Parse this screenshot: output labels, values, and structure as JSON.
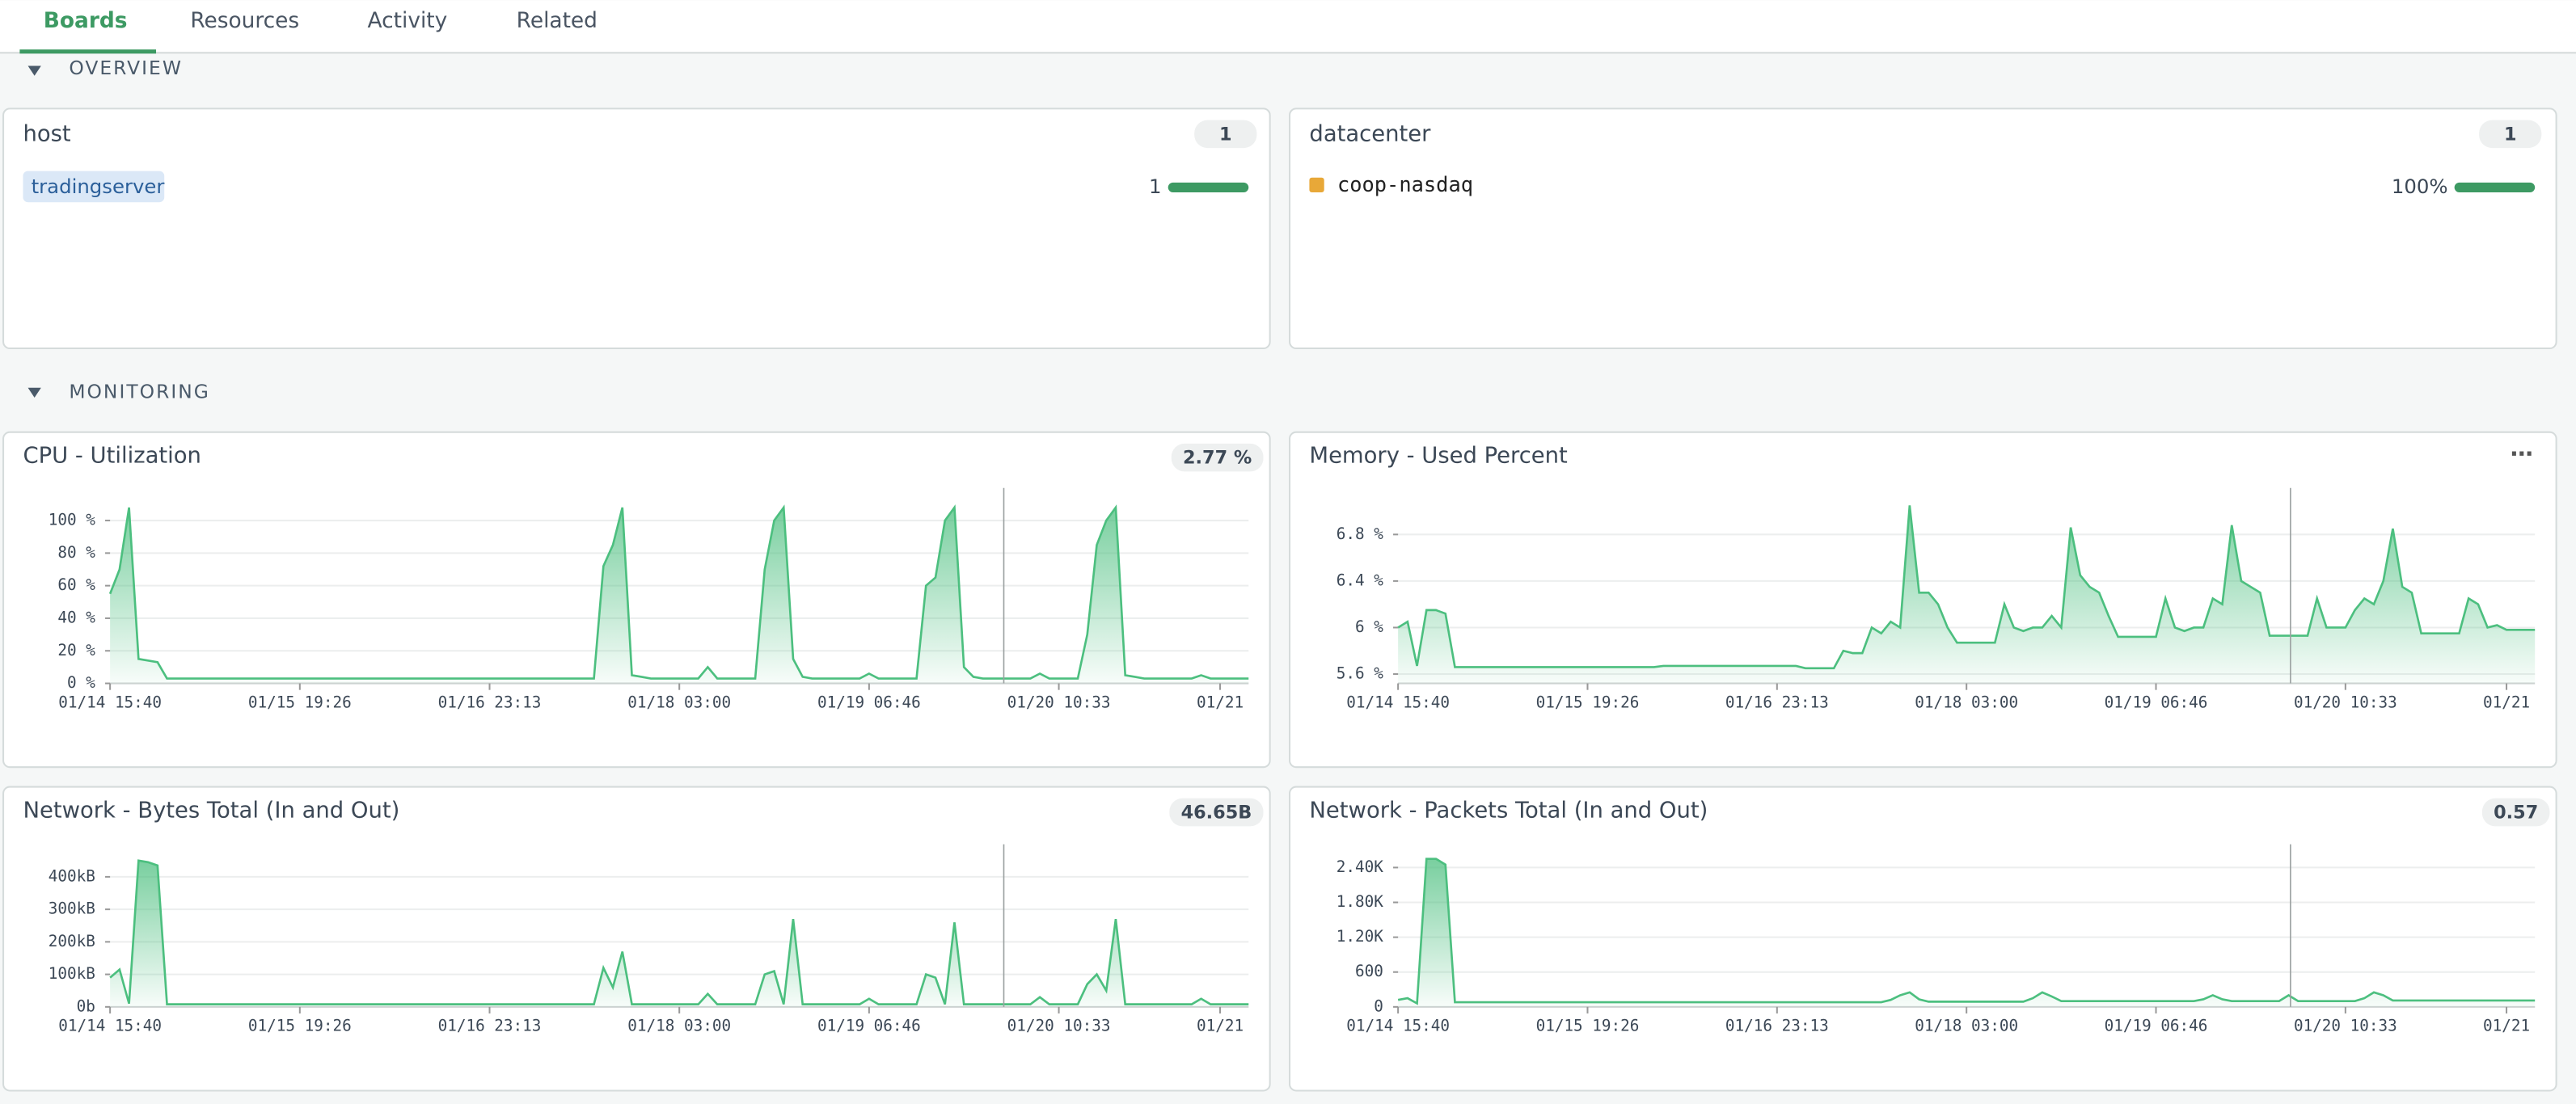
{
  "tabs": [
    "Boards",
    "Resources",
    "Activity",
    "Related"
  ],
  "sections": {
    "overview": "OVERVIEW",
    "monitoring": "MONITORING"
  },
  "host": {
    "title": "host",
    "count": 1,
    "tag": "tradingserver",
    "share": 1
  },
  "datacenter": {
    "title": "datacenter",
    "count": 1,
    "item": "coop-nasdaq",
    "item_color": "#e8a838",
    "share": "100%"
  },
  "chart_data": [
    {
      "type": "area",
      "title": "CPU - Utilization",
      "badge": "2.77 %",
      "color": "#4cbf7f",
      "values": [
        55,
        70,
        108,
        15,
        14,
        13,
        3,
        3,
        3,
        3,
        3,
        3,
        3,
        3,
        3,
        3,
        3,
        3,
        3,
        3,
        3,
        3,
        3,
        3,
        3,
        3,
        3,
        3,
        3,
        3,
        3,
        3,
        3,
        3,
        3,
        3,
        3,
        3,
        3,
        3,
        3,
        3,
        3,
        3,
        3,
        3,
        3,
        3,
        3,
        3,
        3,
        3,
        72,
        85,
        108,
        5,
        4,
        3,
        3,
        3,
        3,
        3,
        3,
        10,
        3,
        3,
        3,
        3,
        3,
        70,
        100,
        108,
        15,
        4,
        3,
        3,
        3,
        3,
        3,
        3,
        6,
        3,
        3,
        3,
        3,
        3,
        60,
        65,
        100,
        108,
        10,
        4,
        3,
        3,
        3,
        3,
        3,
        3,
        6,
        3,
        3,
        3,
        3,
        30,
        85,
        100,
        108,
        5,
        4,
        3,
        3,
        3,
        3,
        3,
        3,
        5,
        3,
        3,
        3,
        3,
        3
      ],
      "xlim": [
        0,
        120
      ],
      "xticks": [
        {
          "value": 0,
          "label": "01/14 15:40"
        },
        {
          "value": 20,
          "label": "01/15 19:26"
        },
        {
          "value": 40,
          "label": "01/16 23:13"
        },
        {
          "value": 60,
          "label": "01/18 03:00"
        },
        {
          "value": 80,
          "label": "01/19 06:46"
        },
        {
          "value": 100,
          "label": "01/20 10:33"
        },
        {
          "value": 117,
          "label": "01/21"
        }
      ],
      "ylim": [
        0,
        120
      ],
      "yticks": [
        {
          "value": 0,
          "label": "0 %"
        },
        {
          "value": 20,
          "label": "20 %"
        },
        {
          "value": 40,
          "label": "40 %"
        },
        {
          "value": 60,
          "label": "60 %"
        },
        {
          "value": 80,
          "label": "80 %"
        },
        {
          "value": 100,
          "label": "100 %"
        }
      ],
      "grid": true
    },
    {
      "type": "area",
      "title": "Memory - Used Percent",
      "color": "#4cbf7f",
      "values": [
        6.0,
        6.05,
        5.67,
        6.15,
        6.15,
        6.12,
        5.66,
        5.66,
        5.66,
        5.66,
        5.66,
        5.66,
        5.66,
        5.66,
        5.66,
        5.66,
        5.66,
        5.66,
        5.66,
        5.66,
        5.66,
        5.66,
        5.66,
        5.66,
        5.66,
        5.66,
        5.66,
        5.66,
        5.67,
        5.67,
        5.67,
        5.67,
        5.67,
        5.67,
        5.67,
        5.67,
        5.67,
        5.67,
        5.67,
        5.67,
        5.67,
        5.67,
        5.67,
        5.65,
        5.65,
        5.65,
        5.65,
        5.8,
        5.78,
        5.78,
        6.0,
        5.95,
        6.05,
        6.0,
        7.05,
        6.3,
        6.3,
        6.2,
        6.0,
        5.87,
        5.87,
        5.87,
        5.87,
        5.87,
        6.2,
        6.0,
        5.97,
        6.0,
        6.0,
        6.1,
        6.0,
        6.86,
        6.45,
        6.35,
        6.3,
        6.1,
        5.92,
        5.92,
        5.92,
        5.92,
        5.92,
        6.25,
        6.0,
        5.97,
        6.0,
        6.0,
        6.25,
        6.2,
        6.88,
        6.4,
        6.35,
        6.3,
        5.93,
        5.93,
        5.93,
        5.93,
        5.93,
        6.25,
        6.0,
        6.0,
        6.0,
        6.15,
        6.25,
        6.2,
        6.4,
        6.85,
        6.35,
        6.3,
        5.95,
        5.95,
        5.95,
        5.95,
        5.95,
        6.25,
        6.2,
        6.0,
        6.02,
        5.98,
        5.98,
        5.98,
        5.98
      ],
      "xlim": [
        0,
        120
      ],
      "xticks": [
        {
          "value": 0,
          "label": "01/14 15:40"
        },
        {
          "value": 20,
          "label": "01/15 19:26"
        },
        {
          "value": 40,
          "label": "01/16 23:13"
        },
        {
          "value": 60,
          "label": "01/18 03:00"
        },
        {
          "value": 80,
          "label": "01/19 06:46"
        },
        {
          "value": 100,
          "label": "01/20 10:33"
        },
        {
          "value": 117,
          "label": "01/21"
        }
      ],
      "ylim": [
        5.52,
        7.2
      ],
      "yticks": [
        {
          "value": 5.6,
          "label": "5.6 %"
        },
        {
          "value": 6,
          "label": "6 %"
        },
        {
          "value": 6.4,
          "label": "6.4 %"
        },
        {
          "value": 6.8,
          "label": "6.8 %"
        }
      ],
      "grid": true
    },
    {
      "type": "area",
      "title": "Network - Bytes Total (In and Out)",
      "badge": "46.65B",
      "color": "#4cbf7f",
      "values": [
        90,
        115,
        10,
        450,
        445,
        435,
        8,
        8,
        8,
        8,
        8,
        8,
        8,
        8,
        8,
        8,
        8,
        8,
        8,
        8,
        8,
        8,
        8,
        8,
        8,
        8,
        8,
        8,
        8,
        8,
        8,
        8,
        8,
        8,
        8,
        8,
        8,
        8,
        8,
        8,
        8,
        8,
        8,
        8,
        8,
        8,
        8,
        8,
        8,
        8,
        8,
        8,
        120,
        60,
        170,
        8,
        8,
        8,
        8,
        8,
        8,
        8,
        8,
        40,
        8,
        8,
        8,
        8,
        8,
        100,
        110,
        8,
        270,
        8,
        8,
        8,
        8,
        8,
        8,
        8,
        25,
        8,
        8,
        8,
        8,
        8,
        100,
        90,
        8,
        260,
        8,
        8,
        8,
        8,
        8,
        8,
        8,
        8,
        30,
        8,
        8,
        8,
        8,
        70,
        100,
        50,
        270,
        8,
        8,
        8,
        8,
        8,
        8,
        8,
        8,
        25,
        8,
        8,
        8,
        8,
        8
      ],
      "xlim": [
        0,
        120
      ],
      "xticks": [
        {
          "value": 0,
          "label": "01/14 15:40"
        },
        {
          "value": 20,
          "label": "01/15 19:26"
        },
        {
          "value": 40,
          "label": "01/16 23:13"
        },
        {
          "value": 60,
          "label": "01/18 03:00"
        },
        {
          "value": 80,
          "label": "01/19 06:46"
        },
        {
          "value": 100,
          "label": "01/20 10:33"
        },
        {
          "value": 117,
          "label": "01/21"
        }
      ],
      "ylim": [
        0,
        500
      ],
      "yticks": [
        {
          "value": 0,
          "label": "0b"
        },
        {
          "value": 100,
          "label": "100kB"
        },
        {
          "value": 200,
          "label": "200kB"
        },
        {
          "value": 300,
          "label": "300kB"
        },
        {
          "value": 400,
          "label": "400kB"
        }
      ],
      "grid": true
    },
    {
      "type": "area",
      "title": "Network - Packets Total (In and Out)",
      "badge": "0.57",
      "color": "#4cbf7f",
      "values": [
        120,
        150,
        60,
        2550,
        2550,
        2450,
        80,
        80,
        80,
        80,
        80,
        80,
        80,
        80,
        80,
        80,
        80,
        80,
        80,
        80,
        80,
        80,
        80,
        80,
        80,
        80,
        80,
        80,
        80,
        80,
        80,
        80,
        80,
        80,
        80,
        80,
        80,
        80,
        80,
        80,
        80,
        80,
        80,
        80,
        80,
        80,
        80,
        80,
        80,
        80,
        80,
        80,
        120,
        200,
        250,
        130,
        90,
        90,
        90,
        90,
        90,
        90,
        90,
        90,
        90,
        90,
        90,
        150,
        250,
        180,
        100,
        100,
        100,
        100,
        100,
        100,
        100,
        100,
        100,
        100,
        100,
        100,
        100,
        100,
        100,
        130,
        200,
        130,
        100,
        100,
        100,
        100,
        100,
        100,
        200,
        100,
        100,
        100,
        100,
        100,
        100,
        100,
        150,
        250,
        200,
        110,
        110,
        110,
        110,
        110,
        110,
        110,
        110,
        110,
        110,
        110,
        110,
        110,
        110,
        110,
        110
      ],
      "xlim": [
        0,
        120
      ],
      "xticks": [
        {
          "value": 0,
          "label": "01/14 15:40"
        },
        {
          "value": 20,
          "label": "01/15 19:26"
        },
        {
          "value": 40,
          "label": "01/16 23:13"
        },
        {
          "value": 60,
          "label": "01/18 03:00"
        },
        {
          "value": 80,
          "label": "01/19 06:46"
        },
        {
          "value": 100,
          "label": "01/20 10:33"
        },
        {
          "value": 117,
          "label": "01/21"
        }
      ],
      "ylim": [
        0,
        2800
      ],
      "yticks": [
        0,
        600,
        {
          "value": 1200,
          "label": "1.20K"
        },
        {
          "value": 1800,
          "label": "1.80K"
        },
        {
          "value": 2400,
          "label": "2.40K"
        }
      ],
      "grid": true
    }
  ]
}
